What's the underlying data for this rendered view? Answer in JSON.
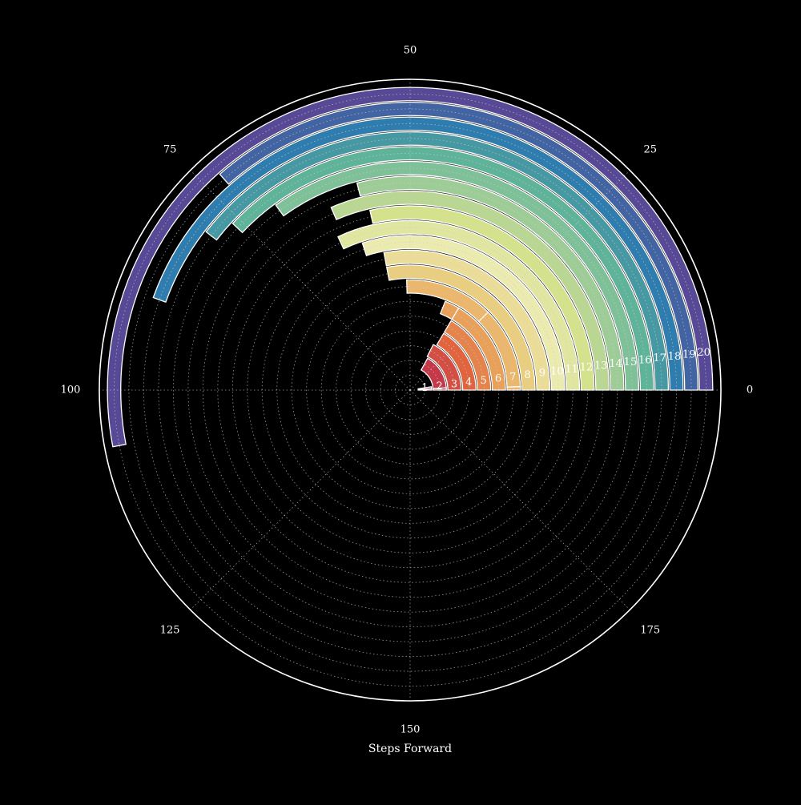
{
  "chart_data": {
    "type": "polar-bar",
    "title": "",
    "xlabel": "Steps Forward",
    "ylabel": "",
    "theta_ticks": [
      "0",
      "25",
      "50",
      "75",
      "100",
      "125",
      "150",
      "175"
    ],
    "theta_full_scale": 200,
    "direction": "counterclockwise",
    "theta_zero": "east",
    "rlim": [
      0,
      21
    ],
    "grid": true,
    "colormap": "Spectral",
    "rings": [
      {
        "label": "1",
        "total": 5,
        "segments": [
          [
            0,
            2
          ],
          [
            2,
            5
          ]
        ]
      },
      {
        "label": "2",
        "total": 34,
        "segments": [
          [
            0,
            2
          ],
          [
            2,
            34
          ]
        ]
      },
      {
        "label": "3",
        "total": 35,
        "segments": [
          [
            0,
            35
          ]
        ]
      },
      {
        "label": "4",
        "total": 33,
        "segments": [
          [
            0,
            33
          ]
        ]
      },
      {
        "label": "5",
        "total": 33,
        "segments": [
          [
            0,
            33
          ]
        ]
      },
      {
        "label": "6",
        "total": 38,
        "segments": [
          [
            0,
            33
          ],
          [
            33,
            38
          ]
        ]
      },
      {
        "label": "7",
        "total": 51,
        "segments": [
          [
            0,
            1
          ],
          [
            1,
            25
          ],
          [
            25,
            51
          ]
        ]
      },
      {
        "label": "8",
        "total": 56,
        "segments": [
          [
            0,
            56
          ]
        ]
      },
      {
        "label": "9",
        "total": 56,
        "segments": [
          [
            0,
            56
          ]
        ]
      },
      {
        "label": "10",
        "total": 60,
        "segments": [
          [
            0,
            60
          ]
        ]
      },
      {
        "label": "11",
        "total": 64,
        "segments": [
          [
            0,
            64
          ]
        ]
      },
      {
        "label": "12",
        "total": 57,
        "segments": [
          [
            0,
            57
          ]
        ]
      },
      {
        "label": "13",
        "total": 63,
        "segments": [
          [
            0,
            63
          ]
        ]
      },
      {
        "label": "14",
        "total": 58,
        "segments": [
          [
            0,
            58
          ]
        ]
      },
      {
        "label": "15",
        "total": 70,
        "segments": [
          [
            0,
            70
          ]
        ]
      },
      {
        "label": "16",
        "total": 76,
        "segments": [
          [
            0,
            76
          ]
        ]
      },
      {
        "label": "17",
        "total": 79,
        "segments": [
          [
            0,
            79
          ]
        ]
      },
      {
        "label": "18",
        "total": 89,
        "segments": [
          [
            0,
            89
          ]
        ]
      },
      {
        "label": "19",
        "total": 73,
        "segments": [
          [
            0,
            73
          ]
        ]
      },
      {
        "label": "20",
        "total": 106,
        "segments": [
          [
            0,
            106
          ]
        ]
      }
    ],
    "colors": [
      "#9e0142",
      "#d53e4f",
      "#f46d43",
      "#fdae61",
      "#fee08b",
      "#ffffbf",
      "#e6f598",
      "#abdda4",
      "#66c2a5",
      "#3288bd",
      "#5e4fa2"
    ]
  }
}
